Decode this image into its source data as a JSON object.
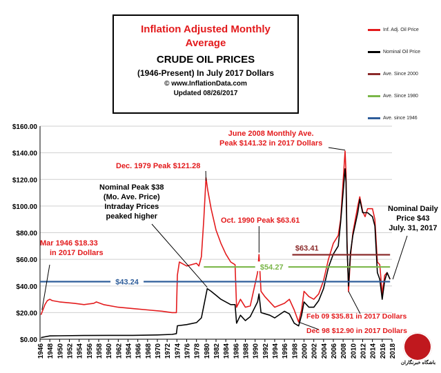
{
  "title": {
    "line1": "Inflation Adjusted Monthly",
    "line2": "Average",
    "line3": "CRUDE OIL PRICES",
    "line4": "(1946-Present) In July 2017 Dollars",
    "line5": "© www.InflationData.com",
    "line6": "Updated 08/26/2017"
  },
  "legend": [
    {
      "label": "Inf. Adj. Oil Price",
      "color": "#e31a1c"
    },
    {
      "label": "Nominal Oil Price",
      "color": "#000000"
    },
    {
      "label": "Ave. Since 2000",
      "color": "#8b2a2a"
    },
    {
      "label": "Ave. Since 1980",
      "color": "#7ab648"
    },
    {
      "label": "Ave. since 1946",
      "color": "#2e5d9a"
    }
  ],
  "annotations": {
    "mar1946": [
      "Mar 1946 $18.33",
      "in 2017 Dollars"
    ],
    "dec1979": "Dec. 1979 Peak $121.28",
    "nominal_peak": [
      "Nominal Peak $38",
      "(Mo. Ave. Price)",
      "Intraday Prices",
      "peaked higher"
    ],
    "oct1990": "Oct. 1990 Peak $63.61",
    "june2008": [
      "June 2008 Monthly Ave.",
      "Peak $141.32 in 2017 Dollars"
    ],
    "nominal_daily": [
      "Nominal Daily",
      "Price $43",
      "July. 31, 2017"
    ],
    "feb09": "Feb 09 $35.81 in 2017 Dollars",
    "dec98": "Dec 98 $12.90 in 2017 Dollars"
  },
  "logo_text": "باشگاه خبرنگاران",
  "chart_data": {
    "type": "line",
    "xlim": [
      1946,
      2018
    ],
    "ylim": [
      0,
      160
    ],
    "y_ticks": [
      0,
      20,
      40,
      60,
      80,
      100,
      120,
      140,
      160
    ],
    "y_tick_labels": [
      "$0.00",
      "$20.00",
      "$40.00",
      "$60.00",
      "$80.00",
      "$100.00",
      "$120.00",
      "$140.00",
      "$160.00"
    ],
    "x_ticks": [
      1946,
      1948,
      1950,
      1952,
      1954,
      1956,
      1958,
      1960,
      1962,
      1964,
      1966,
      1968,
      1970,
      1972,
      1974,
      1976,
      1978,
      1980,
      1982,
      1984,
      1986,
      1988,
      1990,
      1992,
      1994,
      1996,
      1998,
      2000,
      2002,
      2004,
      2006,
      2008,
      2010,
      2012,
      2014,
      2016,
      2018
    ],
    "grid": true,
    "series": [
      {
        "name": "Inf. Adj. Oil Price",
        "color": "#e31a1c",
        "x": [
          1946.2,
          1946.6,
          1947,
          1947.5,
          1948,
          1948.5,
          1950,
          1953,
          1955,
          1957,
          1957.5,
          1959,
          1962,
          1965,
          1968,
          1971,
          1973,
          1973.9,
          1974.1,
          1974.5,
          1976,
          1978,
          1978.5,
          1979,
          1979.5,
          1979.95,
          1980.3,
          1981,
          1982,
          1983,
          1984,
          1985,
          1985.9,
          1986.2,
          1987,
          1988,
          1989,
          1990.5,
          1990.8,
          1991.2,
          1992,
          1993,
          1994,
          1996,
          1997,
          1998,
          1998.9,
          1999.5,
          2000,
          2001,
          2002,
          2003,
          2004,
          2005,
          2006,
          2007,
          2007.5,
          2008.4,
          2008.6,
          2008.8,
          2009.1,
          2009.5,
          2010,
          2011,
          2011.4,
          2012,
          2012.5,
          2013,
          2014,
          2014.5,
          2015,
          2015.5,
          2016,
          2016.5,
          2017,
          2017.6
        ],
        "values": [
          18.33,
          22,
          26,
          29,
          30,
          29,
          28,
          27,
          26,
          27,
          28,
          26,
          24,
          23,
          22,
          21,
          20,
          20,
          48,
          58,
          55,
          57,
          55,
          62,
          90,
          121.28,
          112,
          98,
          82,
          72,
          64,
          58,
          56,
          24,
          30,
          24,
          25,
          50,
          63.61,
          36,
          32,
          28,
          24,
          27,
          30,
          22,
          12.9,
          22,
          36,
          32,
          30,
          34,
          44,
          60,
          72,
          78,
          90,
          141.32,
          125,
          75,
          35.81,
          62,
          80,
          100,
          107,
          96,
          92,
          98,
          98,
          90,
          58,
          56,
          34,
          48,
          50,
          45
        ]
      },
      {
        "name": "Nominal Oil Price",
        "color": "#000000",
        "x": [
          1946.2,
          1947,
          1948,
          1950,
          1955,
          1960,
          1965,
          1970,
          1973,
          1973.9,
          1974.1,
          1976,
          1978,
          1979,
          1979.5,
          1980.2,
          1981,
          1982,
          1983,
          1984,
          1985,
          1985.9,
          1986.2,
          1987,
          1988,
          1989,
          1990.5,
          1990.8,
          1991.2,
          1993,
          1994,
          1996,
          1997,
          1998,
          1998.9,
          1999.5,
          2000,
          2001,
          2002,
          2003,
          2004,
          2005,
          2006,
          2007,
          2007.5,
          2008.4,
          2008.6,
          2008.8,
          2009.1,
          2009.5,
          2010,
          2011,
          2011.4,
          2012,
          2013,
          2014,
          2014.5,
          2015,
          2015.5,
          2016,
          2016.5,
          2017,
          2017.6
        ],
        "values": [
          1.2,
          1.8,
          2.5,
          2.6,
          2.8,
          2.9,
          2.9,
          3.2,
          3.6,
          4.2,
          10.1,
          11,
          12.5,
          16,
          25,
          38,
          36,
          33,
          30,
          28,
          26,
          26,
          12,
          18,
          14,
          17,
          28,
          34,
          20,
          18,
          16,
          21,
          19,
          12,
          10,
          18,
          28,
          24,
          24,
          29,
          38,
          54,
          64,
          70,
          88,
          128,
          118,
          70,
          40,
          65,
          78,
          95,
          105,
          95,
          95,
          92,
          85,
          50,
          45,
          30,
          44,
          50,
          45
        ]
      },
      {
        "name": "Ave. Since 2000",
        "color": "#8b2a2a",
        "x": [
          1997.6,
          2017.6
        ],
        "values": [
          63.41,
          63.41
        ]
      },
      {
        "name": "Ave. Since 1980",
        "color": "#7ab648",
        "x": [
          1979.5,
          2017.6
        ],
        "values": [
          54.27,
          54.27
        ]
      },
      {
        "name": "Ave. since 1946",
        "color": "#2e5d9a",
        "x": [
          1946,
          2017.6
        ],
        "values": [
          43.24,
          43.24
        ]
      }
    ],
    "line_labels": [
      {
        "text": "$63.41",
        "x": 2000.6,
        "y": 68.5,
        "color": "#8b2a2a"
      },
      {
        "text": "$54.27",
        "x": 1993.4,
        "y": 54.27,
        "color": "#7ab648"
      },
      {
        "text": "$43.24",
        "x": 1963.8,
        "y": 43.24,
        "color": "#2e5d9a"
      }
    ]
  }
}
